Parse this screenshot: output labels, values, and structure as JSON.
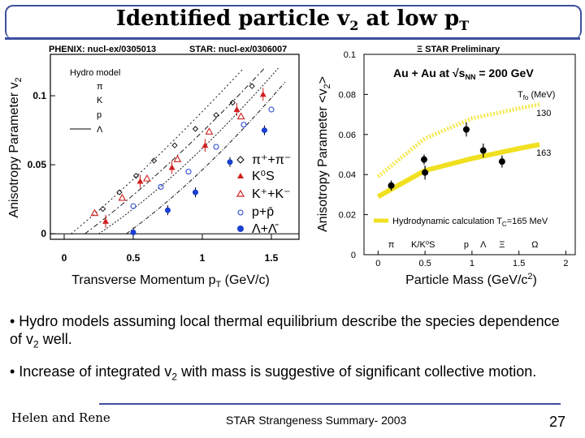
{
  "slide": {
    "title_main": "Identified particle v",
    "title_sub": "2",
    "title_mid": " at low p",
    "title_sub2": "T",
    "bullets": [
      {
        "pre": "• Hydro models assuming local thermal equilibrium describe the species dependence of v",
        "sub": "2",
        "post": " well."
      },
      {
        "pre": "• Increase of integrated v",
        "sub": "2",
        "post": " with mass is suggestive of significant collective motion."
      }
    ],
    "footer_left": "Helen and Rene",
    "footer_center": "STAR Strangeness Summary- 2003",
    "page_number": "27"
  },
  "chart_data": [
    {
      "type": "scatter",
      "refs": [
        "PHENIX: nucl-ex/0305013",
        "STAR: nucl-ex/0306007"
      ],
      "xlabel": "Transverse Momentum p",
      "xlabel_sub": "T",
      "xlabel_unit": " (GeV/c)",
      "ylabel": "Anisotropy Parameter v",
      "ylabel_sub": "2",
      "xlim": [
        -0.1,
        1.7
      ],
      "ylim": [
        -0.004,
        0.13
      ],
      "xticks": [
        "0",
        "0.5",
        "1",
        "1.5"
      ],
      "yticks": [
        "0",
        "0.05",
        "0.1"
      ],
      "legend_hydro_title": "Hydro model",
      "legend_hydro_items": [
        "π",
        "K",
        "p",
        "Λ"
      ],
      "legend_data_items": [
        "π⁺+π⁻",
        "K⁰S",
        "K⁺+K⁻",
        "p+p̄",
        "Λ+Λ̄"
      ],
      "colors": {
        "blue": "#1a3fd0",
        "red": "#d02020",
        "black": "#000000"
      },
      "series": [
        {
          "marker": "open-diamond",
          "color": "#000000",
          "x": [
            0.28,
            0.4,
            0.52,
            0.65,
            0.8,
            0.95,
            1.1,
            1.22,
            1.36
          ],
          "y": [
            0.018,
            0.03,
            0.042,
            0.053,
            0.064,
            0.076,
            0.086,
            0.095,
            0.107
          ]
        },
        {
          "marker": "filled-triangle",
          "color": "#d02020",
          "x": [
            0.3,
            0.55,
            0.78,
            1.02,
            1.25,
            1.44
          ],
          "y": [
            0.009,
            0.038,
            0.048,
            0.064,
            0.09,
            0.101
          ]
        },
        {
          "marker": "open-triangle",
          "color": "#d02020",
          "x": [
            0.22,
            0.42,
            0.6,
            0.82,
            1.05,
            1.28
          ],
          "y": [
            0.015,
            0.026,
            0.04,
            0.054,
            0.074,
            0.085
          ]
        },
        {
          "marker": "open-circle",
          "color": "#1a3fd0",
          "x": [
            0.5,
            0.7,
            0.9,
            1.1,
            1.3,
            1.5
          ],
          "y": [
            0.02,
            0.034,
            0.045,
            0.063,
            0.079,
            0.09
          ]
        },
        {
          "marker": "filled-circle",
          "color": "#1a3fd0",
          "x": [
            0.5,
            0.75,
            0.95,
            1.2,
            1.45
          ],
          "y": [
            0.001,
            0.017,
            0.03,
            0.052,
            0.075
          ]
        }
      ]
    },
    {
      "type": "scatter",
      "header": "STAR Preliminary",
      "xlabel": "Particle Mass (GeV/c",
      "xlabel_sup": "2",
      "xlabel_end": ")",
      "ylabel": "Anisotropy Parameter <v",
      "ylabel_sub": "2",
      "ylabel_end": ">",
      "xlim": [
        -0.15,
        2.1
      ],
      "ylim": [
        0,
        0.1
      ],
      "xticks": [
        "0",
        "0.5",
        "1",
        "1.5",
        "2"
      ],
      "yticks": [
        "0",
        "0.02",
        "0.04",
        "0.06",
        "0.08",
        "0.1"
      ],
      "system_label": "Au + Au at √s",
      "system_sub": "NN",
      "system_end": " = 200 GeV",
      "tfo_label": "T",
      "tfo_sub": "fo",
      "tfo_end": " (MeV)",
      "curve_labels": [
        "130",
        "163"
      ],
      "legend_line_label": "Hydrodynamic calculation T",
      "legend_line_sub": "C",
      "legend_line_end": "=165 MeV",
      "particles": [
        "π",
        "K/K⁰S",
        "p",
        "Λ",
        "Ξ",
        "Ω"
      ],
      "particle_x": [
        0.14,
        0.48,
        0.94,
        1.12,
        1.32,
        1.67
      ],
      "points": {
        "x": [
          0.14,
          0.49,
          0.5,
          0.94,
          1.12,
          1.32
        ],
        "y": [
          0.0345,
          0.0475,
          0.041,
          0.0625,
          0.052,
          0.0465
        ],
        "err": [
          0.0025,
          0.0025,
          0.0035,
          0.0035,
          0.0035,
          0.003
        ]
      },
      "curves": [
        {
          "name": "130",
          "color": "#f5e850",
          "style": "dotted",
          "x": [
            0,
            0.5,
            1.0,
            1.5,
            1.72
          ],
          "y": [
            0.039,
            0.058,
            0.068,
            0.073,
            0.075
          ]
        },
        {
          "name": "163",
          "color": "#f0e020",
          "style": "solid",
          "x": [
            0,
            0.5,
            1.0,
            1.5,
            1.72
          ],
          "y": [
            0.029,
            0.042,
            0.048,
            0.053,
            0.055
          ]
        }
      ]
    }
  ]
}
